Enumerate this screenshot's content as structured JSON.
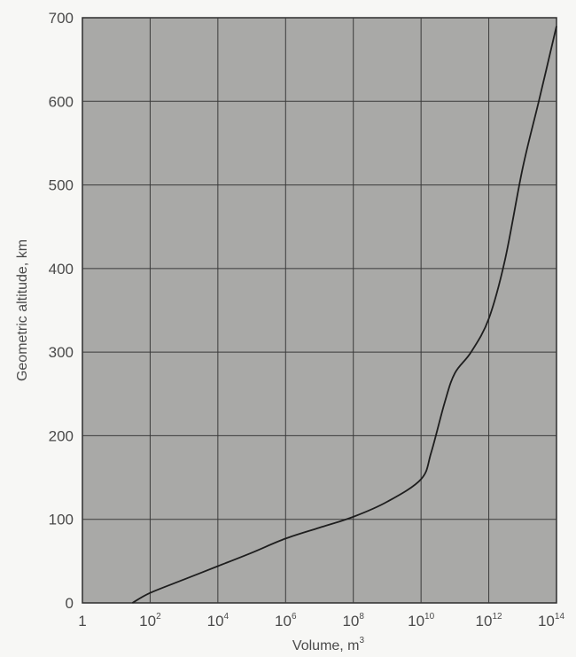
{
  "chart_data": {
    "type": "line",
    "xlabel": "Volume, m",
    "xlabel_sup": "3",
    "ylabel": "Geometric altitude, km",
    "x_scale": "log",
    "xlim": [
      1,
      100000000000000.0
    ],
    "ylim": [
      0,
      700
    ],
    "grid": true,
    "x_ticks": [
      {
        "base": "1",
        "exp": ""
      },
      {
        "base": "10",
        "exp": "2"
      },
      {
        "base": "10",
        "exp": "4"
      },
      {
        "base": "10",
        "exp": "6"
      },
      {
        "base": "10",
        "exp": "8"
      },
      {
        "base": "10",
        "exp": "10"
      },
      {
        "base": "10",
        "exp": "12"
      },
      {
        "base": "10",
        "exp": "14"
      }
    ],
    "y_ticks": [
      "0",
      "100",
      "200",
      "300",
      "400",
      "500",
      "600",
      "700"
    ],
    "series": [
      {
        "x": [
          30,
          100,
          1000,
          10000,
          100000,
          1000000,
          10000000,
          100000000,
          1000000000,
          10000000000,
          20000000000,
          50000000000,
          100000000000,
          300000000000,
          1000000000000,
          3000000000000,
          10000000000000,
          30000000000000,
          100000000000000
        ],
        "y": [
          0,
          12,
          28,
          44,
          60,
          77,
          90,
          103,
          121,
          148,
          180,
          240,
          275,
          300,
          340,
          410,
          520,
          600,
          690
        ]
      }
    ]
  }
}
